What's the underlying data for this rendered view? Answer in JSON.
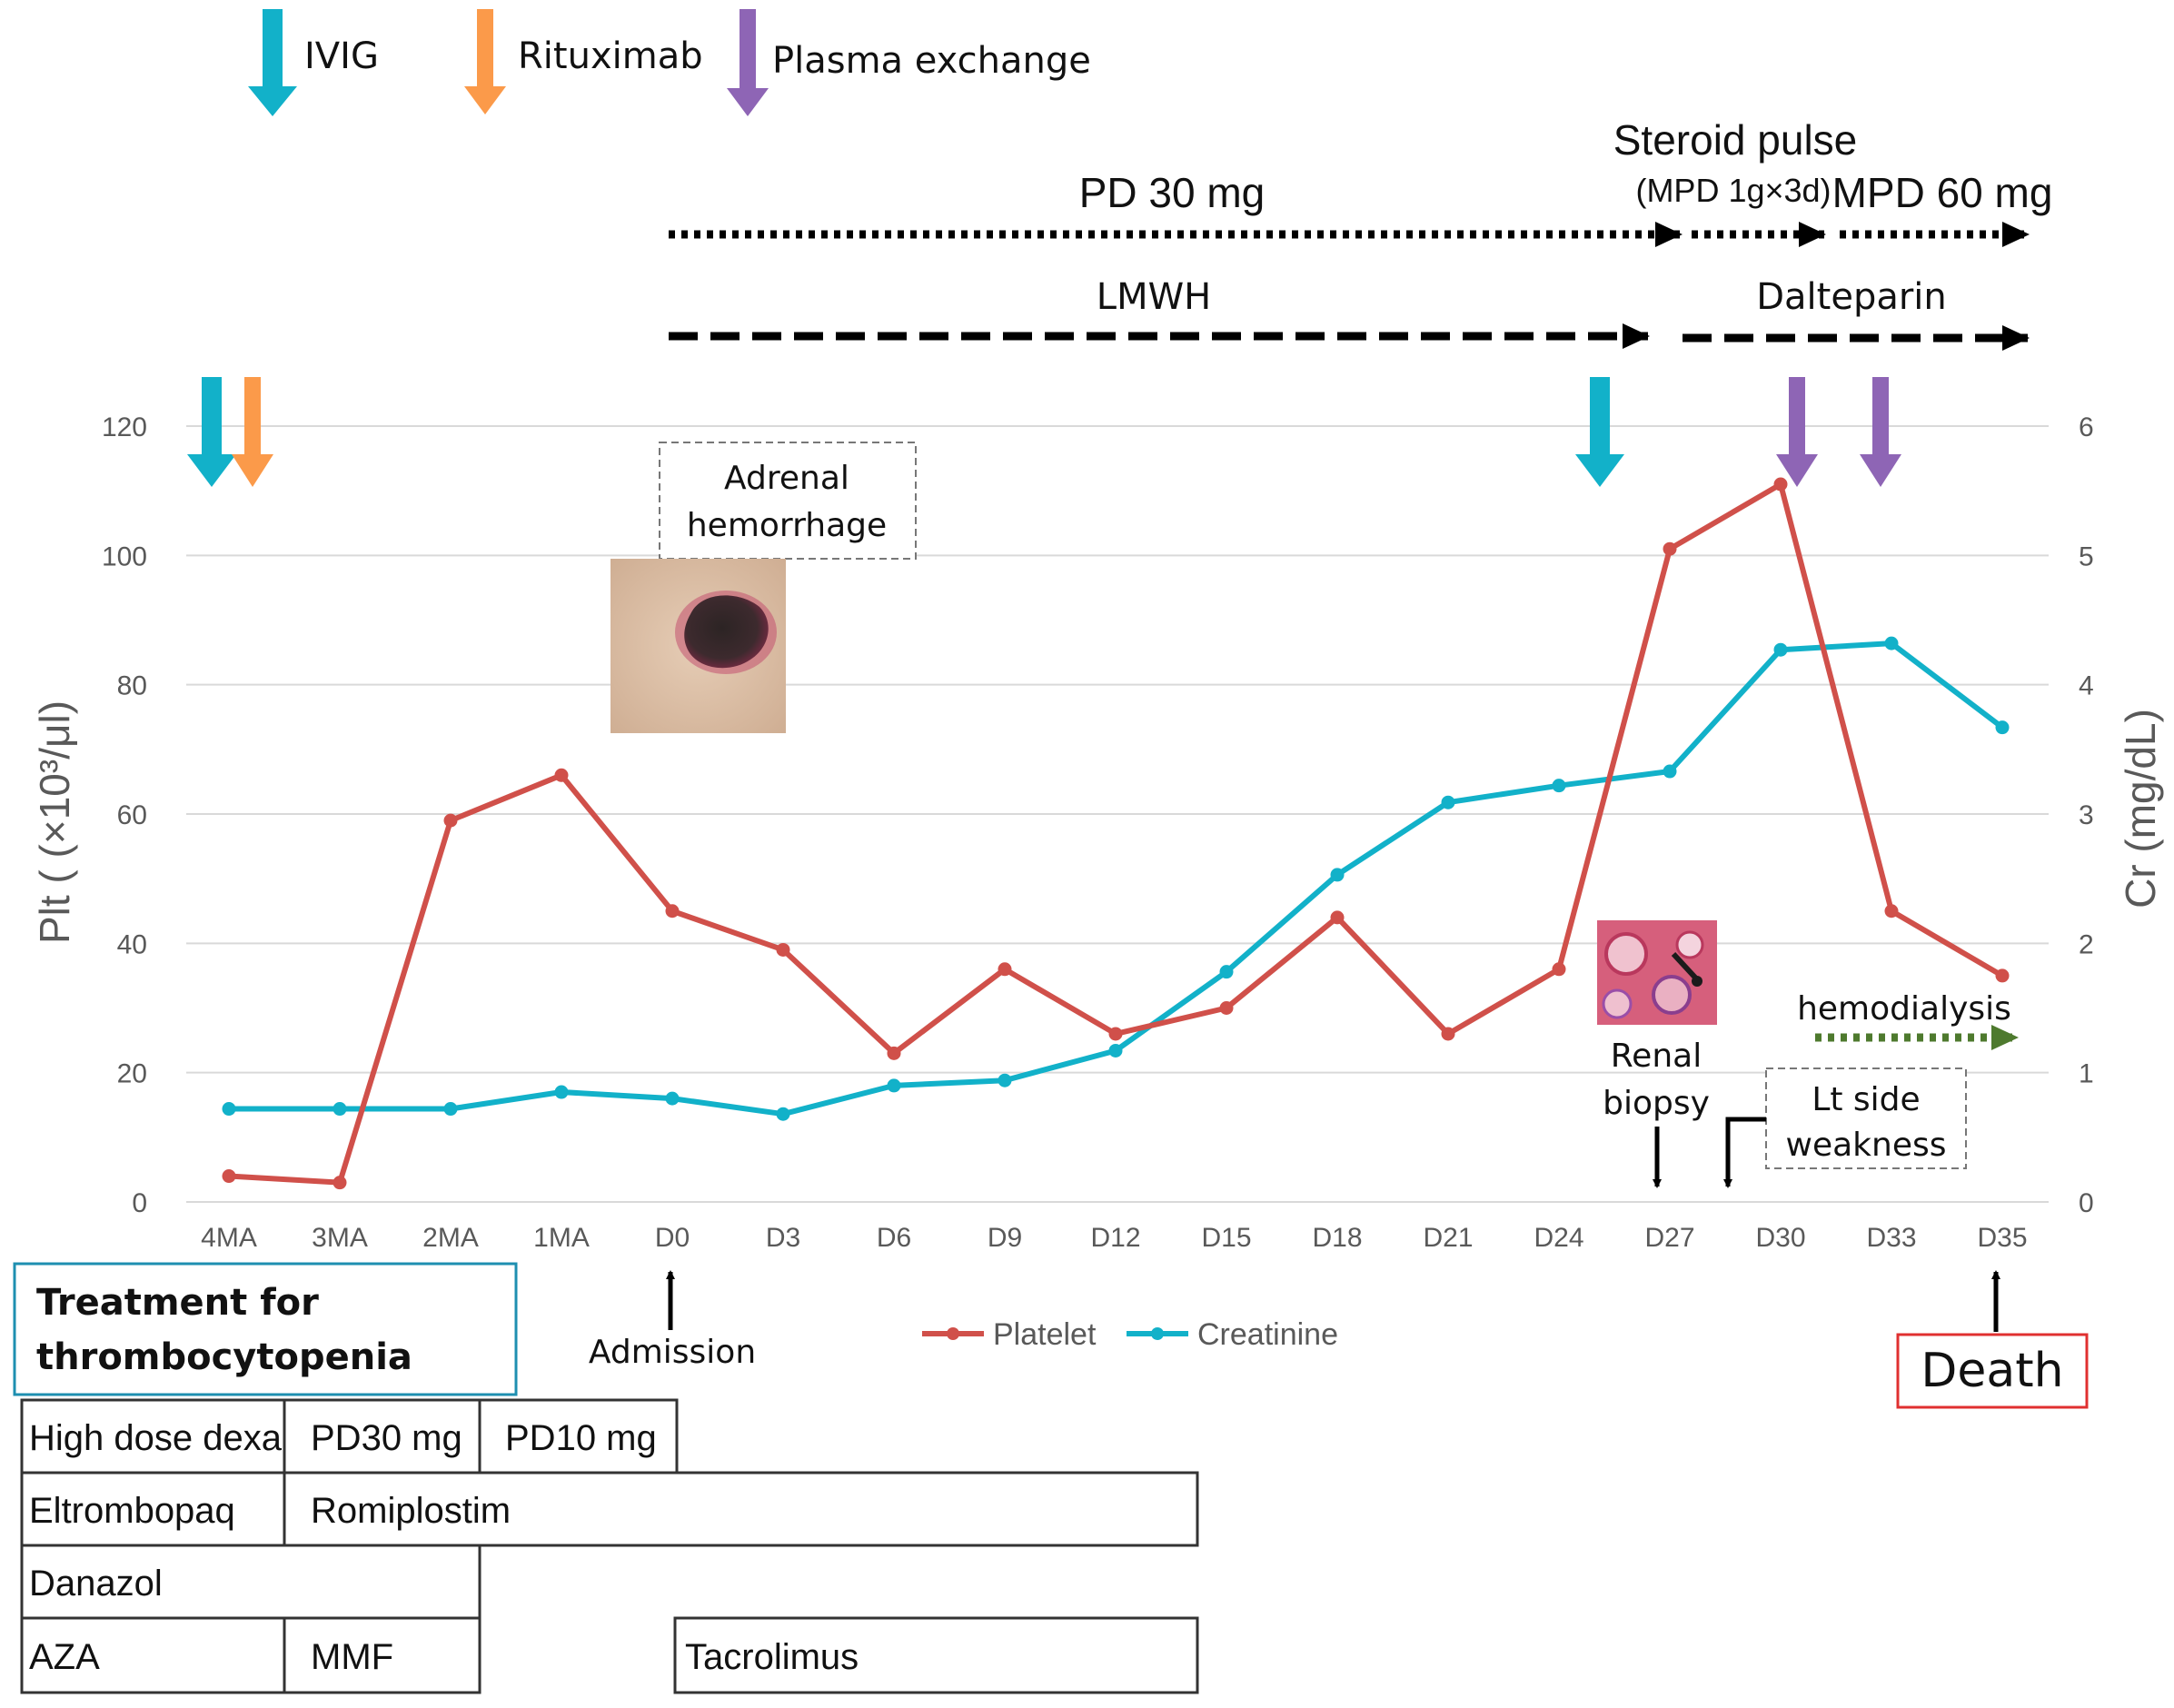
{
  "chart_data": {
    "type": "line",
    "categories": [
      "4MA",
      "3MA",
      "2MA",
      "1MA",
      "D0",
      "D3",
      "D6",
      "D9",
      "D12",
      "D15",
      "D18",
      "D21",
      "D24",
      "D27",
      "D30",
      "D33",
      "D35"
    ],
    "series": [
      {
        "name": "Platelet",
        "axis": "left",
        "color": "#d0504a",
        "values": [
          4,
          3,
          59,
          66,
          45,
          39,
          23,
          36,
          26,
          30,
          44,
          26,
          36,
          101,
          111,
          45,
          35
        ]
      },
      {
        "name": "Creatinine",
        "axis": "right",
        "color": "#12b1c9",
        "values": [
          0.72,
          0.72,
          0.72,
          0.85,
          0.8,
          0.68,
          0.9,
          0.94,
          1.17,
          1.78,
          2.53,
          3.09,
          3.22,
          3.33,
          4.27,
          4.32,
          3.67
        ]
      }
    ],
    "ylabel_left": "Plt ( (×10³/μl)",
    "ylabel_right": "Cr (mg/dL)",
    "ylim_left": [
      0,
      120
    ],
    "ylim_right": [
      0,
      6
    ],
    "yticks_left": [
      "0",
      "20",
      "40",
      "60",
      "80",
      "100",
      "120"
    ],
    "yticks_right": [
      "0",
      "1",
      "2",
      "3",
      "4",
      "5",
      "6"
    ],
    "legend": {
      "platelet": "Platelet",
      "creatinine": "Creatinine",
      "position": "bottom"
    },
    "grid": true
  },
  "top_legend": {
    "ivig": "IVIG",
    "rituximab": "Rituximab",
    "plasma": "Plasma exchange"
  },
  "colors": {
    "ivig": "#12b1c9",
    "rituximab": "#fb9a4a",
    "plasma": "#8e65b5",
    "hemodialysis": "#4e7a2e",
    "death_border": "#e03030"
  },
  "therapy": {
    "pd30": "PD 30 mg",
    "steroid_pulse": "Steroid pulse",
    "mpd_pulse": "(MPD 1g×3d)",
    "mpd60": "MPD 60 mg",
    "lmwh": "LMWH",
    "dalteparin": "Dalteparin",
    "hemodialysis": "hemodialysis"
  },
  "annotations": {
    "adrenal_line1": "Adrenal",
    "adrenal_line2": "hemorrhage",
    "renal_line1": "Renal",
    "renal_line2": "biopsy",
    "lt_line1": "Lt side",
    "lt_line2": "weakness",
    "admission": "Admission",
    "death": "Death"
  },
  "treatment": {
    "title_line1": "Treatment for",
    "title_line2": "thrombocytopenia",
    "high_dose_dexa": "High dose dexa",
    "pd30": "PD30 mg",
    "pd10": "PD10 mg",
    "eltrombopaq": "Eltrombopaq",
    "romiplostim": "Romiplostim",
    "danazol": "Danazol",
    "aza": "AZA",
    "mmf": "MMF",
    "tacrolimus": "Tacrolimus"
  }
}
